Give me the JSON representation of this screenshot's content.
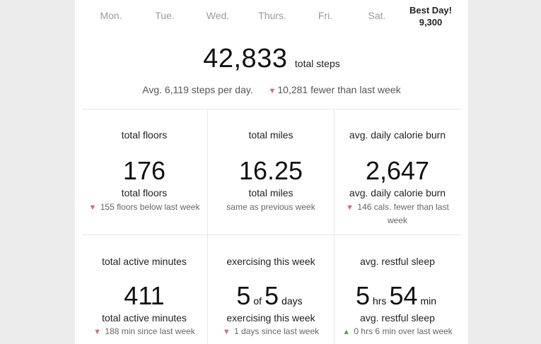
{
  "days": [
    {
      "label": "Mon."
    },
    {
      "label": "Tue."
    },
    {
      "label": "Wed."
    },
    {
      "label": "Thurs."
    },
    {
      "label": "Fri."
    },
    {
      "label": "Sat."
    }
  ],
  "best_day": {
    "title": "Best Day!",
    "value": "9,300"
  },
  "summary": {
    "total_steps": "42,833",
    "total_steps_unit": "total steps",
    "average": "Avg. 6,119 steps per day.",
    "change": "10,281 fewer than last week",
    "change_direction": "down"
  },
  "stats": [
    {
      "heading": "total floors",
      "value": "176",
      "label": "total floors",
      "delta": "155 floors below last week",
      "direction": "down"
    },
    {
      "heading": "total miles",
      "value": "16.25",
      "label": "total miles",
      "delta": "same as previous week",
      "direction": "none"
    },
    {
      "heading": "avg. daily calorie burn",
      "value": "2,647",
      "label": "avg. daily calorie burn",
      "delta": "146 cals. fewer than last week",
      "direction": "down"
    },
    {
      "heading": "total active minutes",
      "value": "411",
      "label": "total active minutes",
      "delta": "188 min since last week",
      "direction": "down"
    },
    {
      "heading": "exercising this week",
      "value_a": "5",
      "value_sep": "of",
      "value_b": "5",
      "value_unit": "days",
      "label": "exercising this week",
      "delta": "1 days since last week",
      "direction": "down"
    },
    {
      "heading": "avg. restful sleep",
      "value_a": "5",
      "value_sep": "hrs",
      "value_b": "54",
      "value_unit": "min",
      "label": "avg. restful sleep",
      "delta": "0 hrs 6 min over last week",
      "direction": "up"
    }
  ],
  "colors": {
    "down": "#e06666",
    "up": "#5aaa3c",
    "divider": "#e8e8e8"
  }
}
